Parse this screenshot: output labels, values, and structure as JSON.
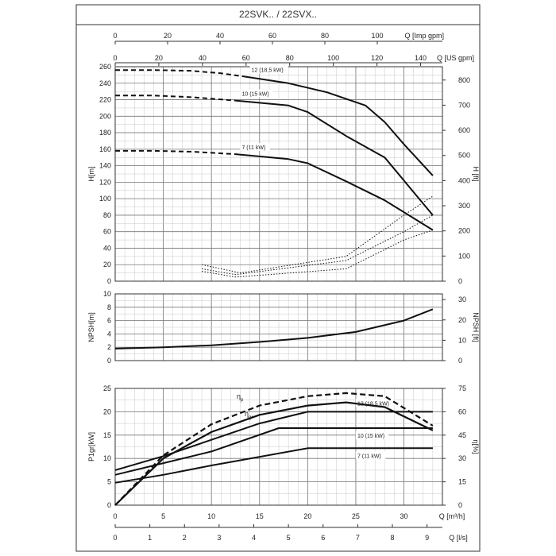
{
  "title": "22SVK.. / 22SVX..",
  "top_axes": {
    "imp": {
      "label": "Q [Imp gpm]",
      "max": 100,
      "ticks": [
        0,
        20,
        40,
        60,
        80,
        100
      ]
    },
    "us": {
      "label": "Q [US gpm]",
      "max": 150,
      "ticks": [
        0,
        20,
        40,
        60,
        80,
        100,
        120,
        140
      ]
    }
  },
  "bottom_axes": {
    "m3h": {
      "label": "Q [m³/h]",
      "max": 34,
      "ticks": [
        0,
        5,
        10,
        15,
        20,
        25,
        30
      ]
    },
    "ls": {
      "label": "Q [l/s]",
      "max": 9.444,
      "ticks": [
        0,
        1,
        2,
        3,
        4,
        5,
        6,
        7,
        8,
        9
      ]
    }
  },
  "chart_data": [
    {
      "type": "line",
      "panel": "head",
      "xlabel": "Q [m³/h]",
      "ylabel": "H[m]",
      "ylabel_right": "H [ft]",
      "ylim": [
        0,
        260
      ],
      "yticks": [
        0,
        20,
        40,
        60,
        80,
        100,
        120,
        140,
        160,
        180,
        200,
        220,
        240,
        260
      ],
      "ylim_right": [
        0,
        853
      ],
      "yticks_right": [
        0,
        100,
        200,
        300,
        400,
        500,
        600,
        700,
        800
      ],
      "grid": true,
      "series": [
        {
          "name": "12 (18,5 kW)",
          "label": "12 (18,5 kW)",
          "dashed_part": {
            "x": [
              0,
              4,
              8,
              11,
              13.5
            ],
            "y": [
              256,
              256,
              255,
              252,
              248
            ]
          },
          "x": [
            13.5,
            18,
            22,
            26,
            28,
            30,
            33
          ],
          "y": [
            248,
            240,
            229,
            213,
            193,
            166,
            128
          ]
        },
        {
          "name": "10 (15 kW)",
          "label": "10 (15 kW)",
          "dashed_part": {
            "x": [
              0,
              4,
              8,
              12.5
            ],
            "y": [
              225,
              225,
              223,
              219
            ]
          },
          "x": [
            12.5,
            18,
            20,
            24,
            28,
            33
          ],
          "y": [
            219,
            213,
            205,
            176,
            150,
            80
          ]
        },
        {
          "name": "7 (11 kW)",
          "label": "7 (11 kW)",
          "dashed_part": {
            "x": [
              0,
              4,
              8,
              12.5
            ],
            "y": [
              158,
              158,
              157,
              154
            ]
          },
          "x": [
            12.5,
            18,
            20,
            24,
            28,
            33
          ],
          "y": [
            154,
            148,
            143,
            121,
            98,
            62
          ]
        }
      ],
      "dotted_envelopes": [
        {
          "x": [
            9,
            13,
            24,
            30,
            33
          ],
          "y": [
            20,
            10,
            30,
            80,
            103
          ]
        },
        {
          "x": [
            9,
            12.5,
            24,
            30,
            33
          ],
          "y": [
            15,
            8,
            25,
            60,
            80
          ]
        },
        {
          "x": [
            9,
            12.5,
            24,
            30,
            33
          ],
          "y": [
            12,
            5,
            15,
            50,
            62
          ]
        }
      ]
    },
    {
      "type": "line",
      "panel": "npsh",
      "xlabel": "Q [m³/h]",
      "ylabel": "NPSH[m]",
      "ylabel_right": "NPSH [ft]",
      "ylim": [
        0,
        10
      ],
      "yticks": [
        0,
        2,
        4,
        6,
        8,
        10
      ],
      "ylim_right": [
        0,
        32.8
      ],
      "yticks_right": [
        0,
        10,
        20,
        30
      ],
      "grid": true,
      "series": [
        {
          "name": "NPSH",
          "x": [
            0,
            5,
            10,
            15,
            20,
            25,
            30,
            33
          ],
          "y": [
            1.8,
            2.0,
            2.3,
            2.8,
            3.4,
            4.3,
            6.0,
            7.7
          ]
        }
      ]
    },
    {
      "type": "line",
      "panel": "power_efficiency",
      "xlabel": "Q [m³/h]",
      "ylabel": "P1gr[kW]",
      "ylabel_right": "η[%]",
      "ylim": [
        0,
        25
      ],
      "yticks": [
        0,
        5,
        10,
        15,
        20,
        25
      ],
      "ylim_right": [
        0,
        75
      ],
      "yticks_right": [
        0,
        15,
        30,
        45,
        60,
        75
      ],
      "grid": true,
      "series": [
        {
          "name": "12 (18,5 kW)",
          "label": "12 (18,5 kW)",
          "x": [
            0,
            5,
            10,
            15,
            20,
            33
          ],
          "y": [
            7.5,
            10.5,
            14,
            17.5,
            20,
            20
          ]
        },
        {
          "name": "10 (15 kW)",
          "label": "10 (15 kW)",
          "x": [
            0,
            5,
            10,
            17,
            33
          ],
          "y": [
            6.5,
            9,
            11.5,
            16.5,
            16.5
          ]
        },
        {
          "name": "7 (11 kW)",
          "label": "7 (11 kW)",
          "x": [
            0,
            5,
            10,
            20,
            33
          ],
          "y": [
            4.8,
            6.5,
            8.5,
            12.2,
            12.2
          ]
        }
      ],
      "efficiency_series": [
        {
          "name": "η_p",
          "label": "η",
          "subscript": "p",
          "style": "dashed",
          "x": [
            0,
            5,
            10,
            15,
            20,
            24,
            28,
            33
          ],
          "y": [
            0,
            32,
            52,
            64,
            70,
            72,
            70,
            51
          ]
        },
        {
          "name": "η_gr",
          "label": "η",
          "subscript": "gr",
          "style": "solid",
          "x": [
            0,
            5,
            10,
            15,
            20,
            24,
            28,
            33
          ],
          "y": [
            0,
            30,
            47,
            58,
            64,
            66,
            63,
            48
          ]
        }
      ]
    }
  ]
}
